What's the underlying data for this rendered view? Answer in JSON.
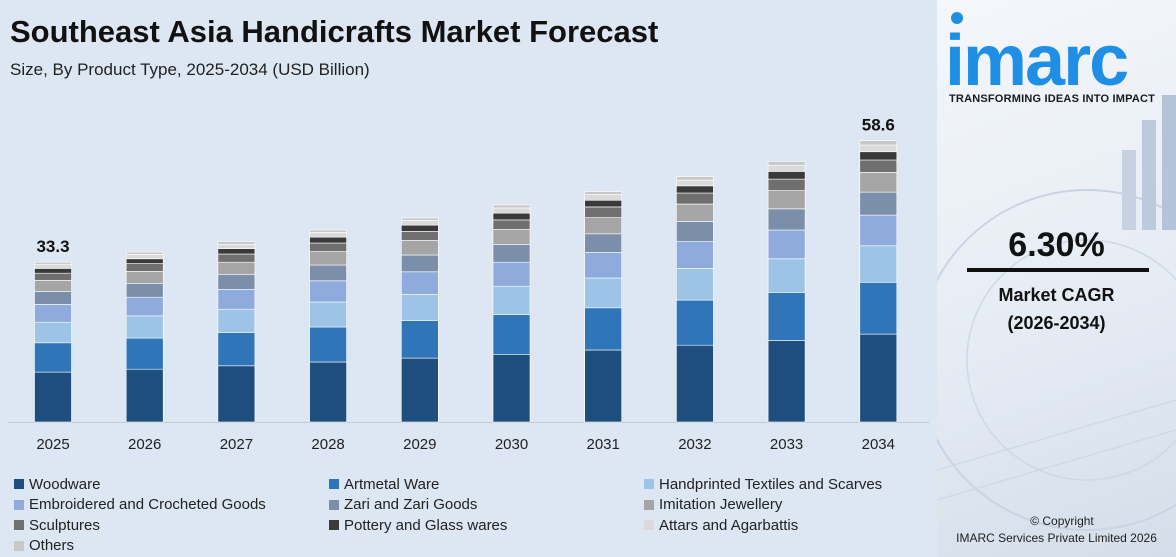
{
  "title": "Southeast Asia Handicrafts Market Forecast",
  "subtitle": "Size, By Product Type, 2025-2034 (USD Billion)",
  "brand": {
    "logo_text": "imarc",
    "tagline": "TRANSFORMING IDEAS INTO IMPACT",
    "color": "#1f8fe6"
  },
  "cagr": {
    "value": "6.30%",
    "label": "Market CAGR",
    "period": "(2026-2034)"
  },
  "footer": {
    "copyright": "© Copyright",
    "company": "IMARC Services Private Limited 2026"
  },
  "chart_data": {
    "type": "bar",
    "stacked": true,
    "categories": [
      "2025",
      "2026",
      "2027",
      "2028",
      "2029",
      "2030",
      "2031",
      "2032",
      "2033",
      "2034"
    ],
    "totals": [
      33.3,
      35.4,
      37.6,
      40.0,
      42.5,
      45.2,
      48.0,
      51.1,
      54.3,
      58.6
    ],
    "total_labels": {
      "2025": "33.3",
      "2034": "58.6"
    },
    "legend_position": "bottom",
    "grid": false,
    "series": [
      {
        "name": "Woodware",
        "color": "#1e4e7e",
        "values": [
          10.4,
          11.0,
          11.7,
          12.5,
          13.3,
          14.1,
          15.0,
          16.0,
          17.0,
          18.3
        ]
      },
      {
        "name": "Artmetal Ware",
        "color": "#2f75b8",
        "values": [
          6.1,
          6.5,
          6.9,
          7.3,
          7.8,
          8.3,
          8.8,
          9.4,
          10.0,
          10.8
        ]
      },
      {
        "name": "Handprinted Textiles and Scarves",
        "color": "#9dc3e6",
        "values": [
          4.3,
          4.6,
          4.9,
          5.2,
          5.5,
          5.9,
          6.2,
          6.6,
          7.0,
          7.6
        ]
      },
      {
        "name": "Embroidered and Crocheted Goods",
        "color": "#8faadc",
        "values": [
          3.7,
          3.9,
          4.1,
          4.4,
          4.7,
          5.0,
          5.3,
          5.6,
          6.0,
          6.4
        ]
      },
      {
        "name": "Zari and Zari Goods",
        "color": "#7b8fab",
        "values": [
          2.7,
          2.9,
          3.1,
          3.3,
          3.5,
          3.7,
          3.9,
          4.2,
          4.4,
          4.8
        ]
      },
      {
        "name": "Imitation Jewellery",
        "color": "#a5a5a5",
        "values": [
          2.3,
          2.5,
          2.6,
          2.8,
          3.0,
          3.1,
          3.4,
          3.6,
          3.8,
          4.1
        ]
      },
      {
        "name": "Sculptures",
        "color": "#6f6f6f",
        "values": [
          1.5,
          1.6,
          1.7,
          1.8,
          1.9,
          2.0,
          2.2,
          2.3,
          2.4,
          2.6
        ]
      },
      {
        "name": "Pottery and Glass wares",
        "color": "#3a3a3a",
        "values": [
          1.0,
          1.0,
          1.1,
          1.2,
          1.3,
          1.4,
          1.4,
          1.5,
          1.6,
          1.7
        ]
      },
      {
        "name": "Attars and Agarbattis",
        "color": "#dadada",
        "values": [
          0.8,
          0.9,
          0.9,
          1.0,
          1.0,
          1.1,
          1.2,
          1.2,
          1.3,
          1.4
        ]
      },
      {
        "name": "Others",
        "color": "#c8c8c8",
        "values": [
          0.5,
          0.5,
          0.6,
          0.5,
          0.5,
          0.6,
          0.6,
          0.7,
          0.8,
          0.9
        ]
      }
    ]
  }
}
